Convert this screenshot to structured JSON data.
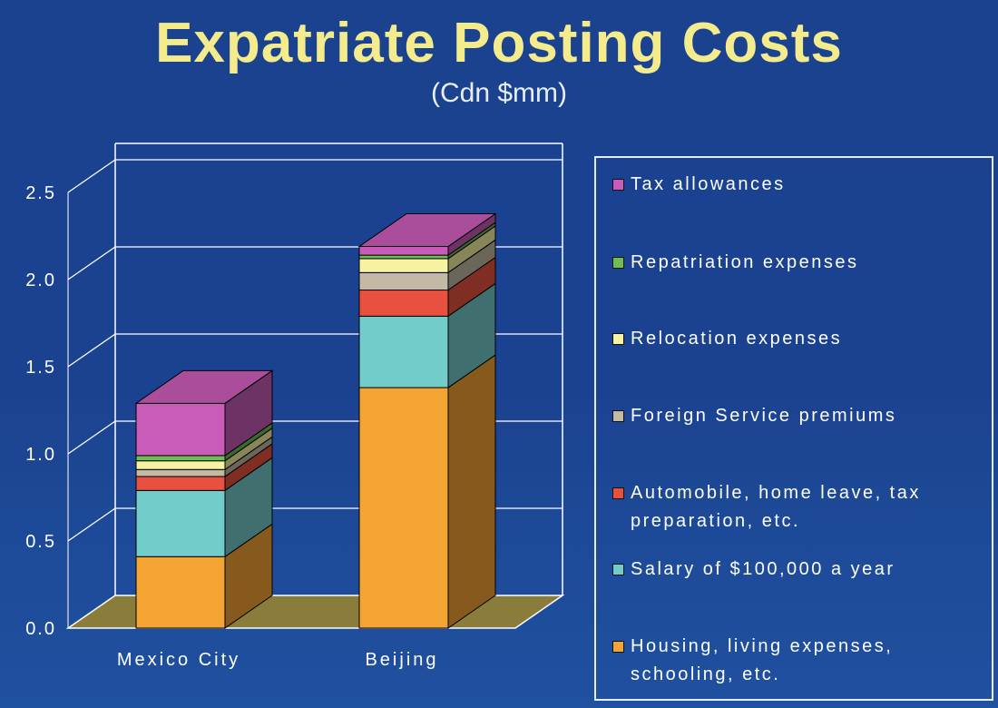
{
  "title": "Expatriate Posting Costs",
  "subtitle": "(Cdn $mm)",
  "chart_data": {
    "type": "bar",
    "stacked": true,
    "three_d": true,
    "categories": [
      "Mexico City",
      "Beijing"
    ],
    "ylim": [
      0,
      2.5
    ],
    "yticks": [
      "0.0",
      "0.5",
      "1.0",
      "1.5",
      "2.0",
      "2.5"
    ],
    "grid": true,
    "legend_position": "right",
    "series": [
      {
        "name": "Housing, living expenses, schooling, etc.",
        "color": "#f4a433",
        "values": [
          0.41,
          1.38
        ]
      },
      {
        "name": "Salary of $100,000 a year",
        "color": "#72ccc9",
        "values": [
          0.38,
          0.41
        ]
      },
      {
        "name": "Automobile, home leave, tax preparation, etc.",
        "color": "#e8513f",
        "values": [
          0.08,
          0.15
        ]
      },
      {
        "name": "Foreign Service premiums",
        "color": "#c3b9a4",
        "values": [
          0.04,
          0.1
        ]
      },
      {
        "name": "Relocation expenses",
        "color": "#f7f1a2",
        "values": [
          0.05,
          0.08
        ]
      },
      {
        "name": "Repatriation expenses",
        "color": "#6dbf52",
        "values": [
          0.03,
          0.02
        ]
      },
      {
        "name": "Tax allowances",
        "color": "#c85cb8",
        "values": [
          0.3,
          0.05
        ]
      }
    ]
  },
  "legend": {
    "items": [
      {
        "label": "Tax allowances",
        "color": "#c85cb8"
      },
      {
        "label": "Repatriation expenses",
        "color": "#6dbf52"
      },
      {
        "label": "Relocation expenses",
        "color": "#f7f1a2"
      },
      {
        "label": "Foreign Service premiums",
        "color": "#c3b9a4"
      },
      {
        "label": "Automobile, home leave, tax preparation, etc.",
        "color": "#e8513f"
      },
      {
        "label": "Salary of $100,000 a year",
        "color": "#72ccc9"
      },
      {
        "label": "Housing, living expenses, schooling, etc.",
        "color": "#f4a433"
      }
    ]
  }
}
